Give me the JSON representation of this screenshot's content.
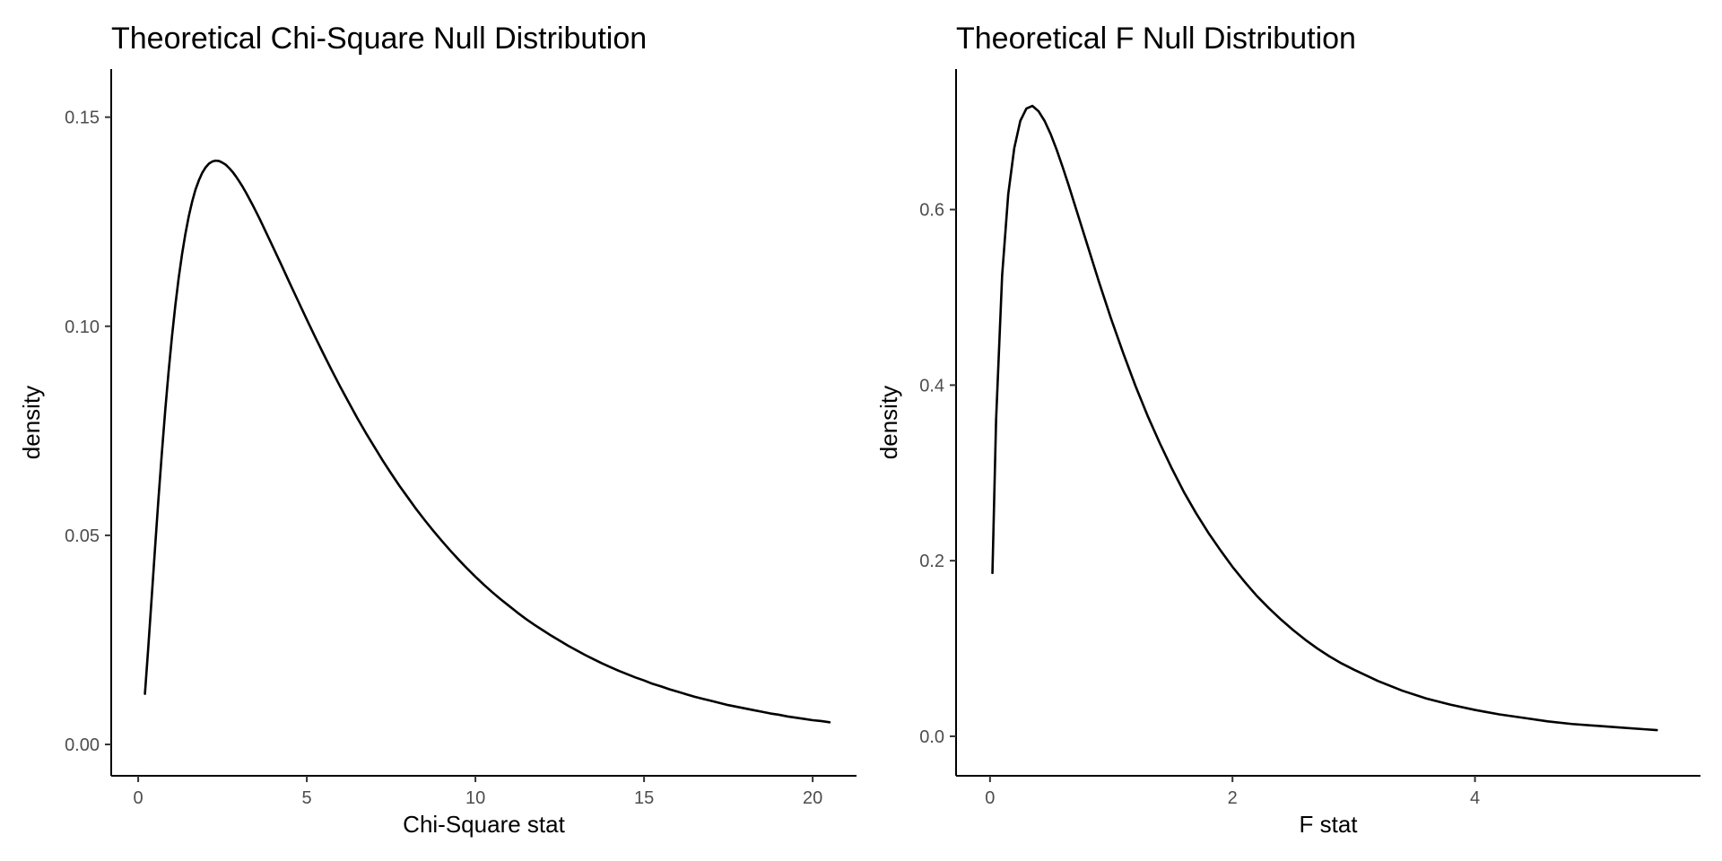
{
  "chart_data": [
    {
      "type": "line",
      "title": "Theoretical Chi-Square Null Distribution",
      "xlabel": "Chi-Square stat",
      "ylabel": "density",
      "xlim": [
        -0.8,
        21.3
      ],
      "ylim": [
        -0.0075,
        0.1615
      ],
      "x_ticks": [
        0,
        5,
        10,
        15,
        20
      ],
      "x_tick_labels": [
        "0",
        "5",
        "10",
        "15",
        "20"
      ],
      "y_ticks": [
        0.0,
        0.05,
        0.1,
        0.15
      ],
      "y_tick_labels": [
        "0.00",
        "0.05",
        "0.10",
        "0.15"
      ],
      "grid": false,
      "line_color": "#000000",
      "series": [
        {
          "x": [
            0.2,
            0.3,
            0.4,
            0.5,
            0.6,
            0.7,
            0.8,
            0.9,
            1.0,
            1.1,
            1.2,
            1.3,
            1.4,
            1.5,
            1.6,
            1.7,
            1.8,
            1.9,
            2.0,
            2.1,
            2.2,
            2.3,
            2.4,
            2.5,
            2.6,
            2.7,
            2.8,
            2.9,
            3.0,
            3.1,
            3.2,
            3.3,
            3.4,
            3.5,
            3.6,
            3.7,
            3.8,
            3.9,
            4.0,
            4.25,
            4.5,
            4.75,
            5.0,
            5.25,
            5.5,
            5.75,
            6.0,
            6.25,
            6.5,
            6.75,
            7.0,
            7.25,
            7.5,
            7.75,
            8.0,
            8.25,
            8.5,
            8.75,
            9.0,
            9.25,
            9.5,
            9.75,
            10.0,
            10.25,
            10.5,
            10.75,
            11.0,
            11.25,
            11.5,
            11.75,
            12.0,
            12.25,
            12.5,
            12.75,
            13.0,
            13.25,
            13.5,
            13.75,
            14.0,
            14.25,
            14.5,
            14.75,
            15.0,
            15.25,
            15.5,
            15.75,
            16.0,
            16.25,
            16.5,
            16.75,
            17.0,
            17.25,
            17.5,
            17.75,
            18.0,
            18.25,
            18.5,
            18.75,
            19.0,
            19.25,
            19.5,
            19.75,
            20.0,
            20.25,
            20.5
          ],
          "y": [
            0.0121,
            0.0233,
            0.0351,
            0.047,
            0.0586,
            0.0695,
            0.0797,
            0.089,
            0.0974,
            0.1049,
            0.1115,
            0.1172,
            0.1221,
            0.1263,
            0.1298,
            0.1327,
            0.1349,
            0.1367,
            0.138,
            0.1389,
            0.1394,
            0.1396,
            0.1395,
            0.1391,
            0.1386,
            0.1378,
            0.1369,
            0.1358,
            0.1346,
            0.1333,
            0.1319,
            0.1304,
            0.1289,
            0.1273,
            0.1257,
            0.124,
            0.1223,
            0.1206,
            0.1189,
            0.1146,
            0.1102,
            0.1059,
            0.1016,
            0.0974,
            0.0933,
            0.0893,
            0.0854,
            0.0817,
            0.078,
            0.0745,
            0.0712,
            0.0679,
            0.0648,
            0.0618,
            0.059,
            0.0562,
            0.0536,
            0.0511,
            0.0487,
            0.0464,
            0.0442,
            0.0421,
            0.0401,
            0.0382,
            0.0364,
            0.0347,
            0.0331,
            0.0315,
            0.03,
            0.0286,
            0.0273,
            0.026,
            0.0248,
            0.0236,
            0.0225,
            0.0214,
            0.0204,
            0.0194,
            0.0185,
            0.0176,
            0.0168,
            0.016,
            0.0153,
            0.0145,
            0.0139,
            0.0132,
            0.0126,
            0.012,
            0.0114,
            0.0109,
            0.0104,
            0.0099,
            0.0094,
            0.009,
            0.0086,
            0.0082,
            0.0078,
            0.0074,
            0.0071,
            0.0067,
            0.0064,
            0.0061,
            0.0058,
            0.0056,
            0.0053
          ]
        }
      ]
    },
    {
      "type": "line",
      "title": "Theoretical F Null Distribution",
      "xlabel": "F stat",
      "ylabel": "density",
      "xlim": [
        -0.28,
        5.86
      ],
      "ylim": [
        -0.045,
        0.76
      ],
      "x_ticks": [
        0,
        2,
        4
      ],
      "x_tick_labels": [
        "0",
        "2",
        "4"
      ],
      "y_ticks": [
        0.0,
        0.2,
        0.4,
        0.6
      ],
      "y_tick_labels": [
        "0.0",
        "0.2",
        "0.4",
        "0.6"
      ],
      "grid": false,
      "line_color": "#000000",
      "series": [
        {
          "x": [
            0.02,
            0.05,
            0.1,
            0.15,
            0.2,
            0.25,
            0.3,
            0.35,
            0.4,
            0.45,
            0.5,
            0.55,
            0.6,
            0.65,
            0.7,
            0.75,
            0.8,
            0.85,
            0.9,
            0.95,
            1.0,
            1.1,
            1.2,
            1.3,
            1.4,
            1.5,
            1.6,
            1.7,
            1.8,
            1.9,
            2.0,
            2.1,
            2.2,
            2.3,
            2.4,
            2.5,
            2.6,
            2.7,
            2.8,
            2.9,
            3.0,
            3.2,
            3.4,
            3.6,
            3.8,
            4.0,
            4.2,
            4.4,
            4.6,
            4.8,
            5.0,
            5.2,
            5.4,
            5.5
          ],
          "y": [
            0.186,
            0.36,
            0.525,
            0.617,
            0.67,
            0.701,
            0.715,
            0.718,
            0.712,
            0.701,
            0.686,
            0.668,
            0.648,
            0.627,
            0.605,
            0.583,
            0.561,
            0.539,
            0.517,
            0.496,
            0.475,
            0.436,
            0.399,
            0.365,
            0.334,
            0.305,
            0.278,
            0.254,
            0.232,
            0.212,
            0.193,
            0.176,
            0.16,
            0.146,
            0.133,
            0.121,
            0.11,
            0.1,
            0.091,
            0.083,
            0.076,
            0.063,
            0.052,
            0.043,
            0.036,
            0.03,
            0.025,
            0.021,
            0.017,
            0.014,
            0.012,
            0.01,
            0.008,
            0.007
          ]
        }
      ]
    }
  ]
}
